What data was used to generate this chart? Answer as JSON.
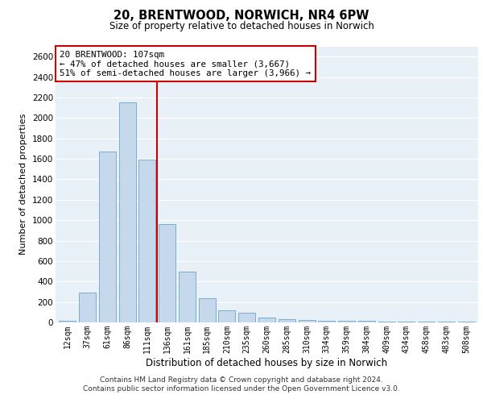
{
  "title1": "20, BRENTWOOD, NORWICH, NR4 6PW",
  "title2": "Size of property relative to detached houses in Norwich",
  "xlabel": "Distribution of detached houses by size in Norwich",
  "ylabel": "Number of detached properties",
  "categories": [
    "12sqm",
    "37sqm",
    "61sqm",
    "86sqm",
    "111sqm",
    "136sqm",
    "161sqm",
    "185sqm",
    "210sqm",
    "235sqm",
    "260sqm",
    "285sqm",
    "310sqm",
    "334sqm",
    "359sqm",
    "384sqm",
    "409sqm",
    "434sqm",
    "458sqm",
    "483sqm",
    "508sqm"
  ],
  "values": [
    15,
    290,
    1670,
    2150,
    1590,
    960,
    500,
    240,
    120,
    95,
    45,
    30,
    20,
    18,
    15,
    12,
    5,
    10,
    5,
    5,
    10
  ],
  "bar_color": "#c6d9ec",
  "bar_edge_color": "#7aaece",
  "vline_x": 4.5,
  "vline_color": "#cc0000",
  "annotation_text": "20 BRENTWOOD: 107sqm\n← 47% of detached houses are smaller (3,667)\n51% of semi-detached houses are larger (3,966) →",
  "annotation_box_color": "#ffffff",
  "annotation_border_color": "#cc0000",
  "ylim": [
    0,
    2700
  ],
  "yticks": [
    0,
    200,
    400,
    600,
    800,
    1000,
    1200,
    1400,
    1600,
    1800,
    2000,
    2200,
    2400,
    2600
  ],
  "bg_color": "#e8f0f8",
  "footnote1": "Contains HM Land Registry data © Crown copyright and database right 2024.",
  "footnote2": "Contains public sector information licensed under the Open Government Licence v3.0."
}
